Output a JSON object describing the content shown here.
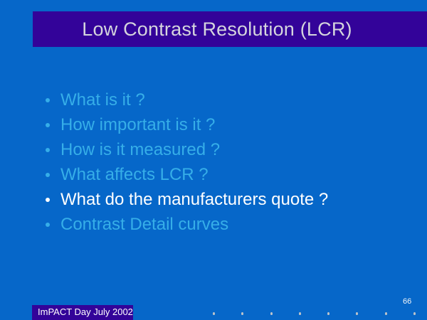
{
  "slide": {
    "title": "Low Contrast Resolution (LCR)",
    "bullets": [
      {
        "text": "What is it ?",
        "color": "#36AEE8"
      },
      {
        "text": "How important is it ?",
        "color": "#36AEE8"
      },
      {
        "text": "How is it measured ?",
        "color": "#36AEE8"
      },
      {
        "text": "What affects LCR ?",
        "color": "#36AEE8"
      },
      {
        "text": "What do the manufacturers quote ?",
        "color": "#FFFFFF"
      },
      {
        "text": "Contrast Detail curves",
        "color": "#36AEE8"
      }
    ],
    "footer_label": "ImPACT Day July 2002",
    "page_number": "66",
    "marker_dot_count": 8
  },
  "colors": {
    "background": "#0667C9",
    "title_bar": "#330399",
    "title_text": "#D5D5DD",
    "bullet_cyan": "#36AEE8",
    "bullet_emphasis": "#FFFFFF",
    "footer_bg": "#330399",
    "footer_text": "#FFFFFF",
    "marker_dot": "#BEC4CA"
  }
}
